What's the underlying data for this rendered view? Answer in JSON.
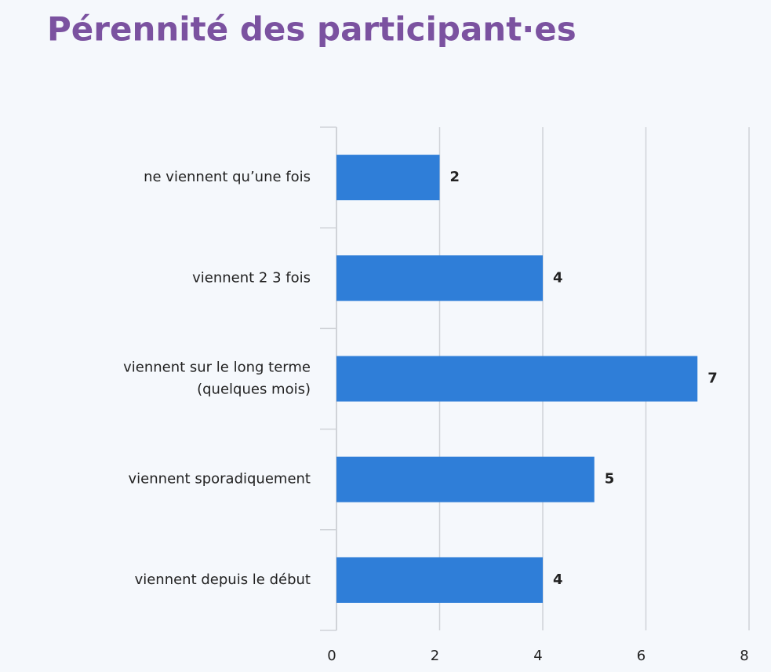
{
  "chart_data": {
    "type": "bar",
    "orientation": "horizontal",
    "title": "Pérennité des participant·es",
    "categories": [
      "ne viennent qu’une fois",
      "viennent 2 3 fois",
      "viennent sur le long terme (quelques mois)",
      "viennent sporadiquement",
      "viennent depuis le début"
    ],
    "values": [
      2,
      4,
      7,
      5,
      4
    ],
    "color": "#2f7ed8",
    "xlim": [
      0,
      8
    ],
    "xticks": [
      0,
      2,
      4,
      6,
      8
    ],
    "grid": true
  }
}
